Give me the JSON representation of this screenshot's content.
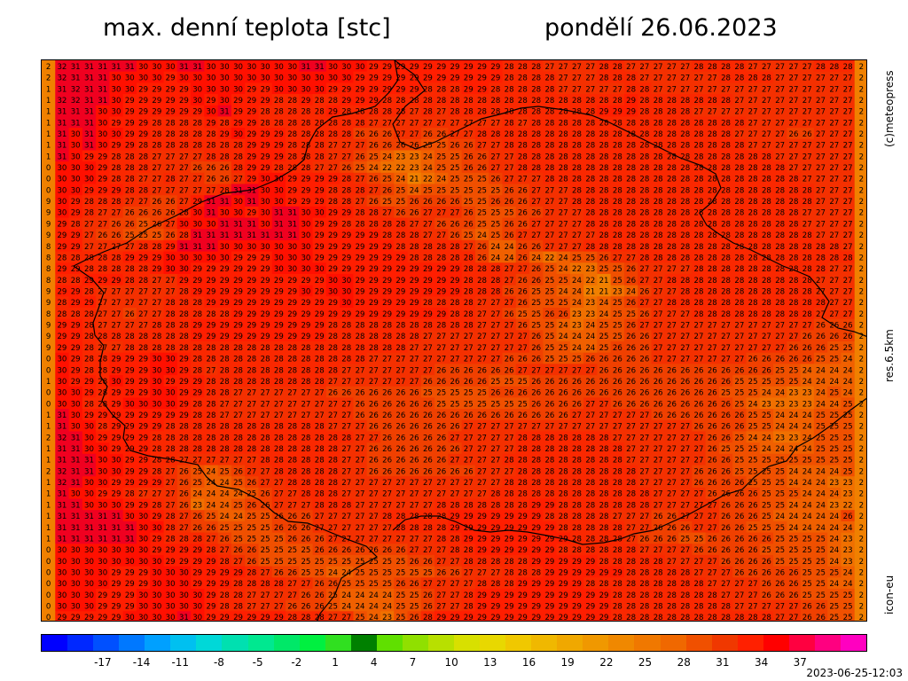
{
  "header": {
    "title": "max. denní teplota [stc]",
    "date": "pondělí 26.06.2023"
  },
  "side_labels": {
    "copyright": "(c)meteopress",
    "resolution": "res.6.5km",
    "model": "icon-eu"
  },
  "run_time": "2023-06-25-12:03",
  "legend": {
    "ticks": [
      "-17",
      "-14",
      "-11",
      "-8",
      "-5",
      "-2",
      "1",
      "4",
      "7",
      "10",
      "13",
      "16",
      "19",
      "22",
      "25",
      "28",
      "31",
      "34",
      "37"
    ],
    "colors": [
      "#0000ff",
      "#0028ff",
      "#0050ff",
      "#0078ff",
      "#00a0ff",
      "#00c0f0",
      "#00d8d8",
      "#00e0b0",
      "#00e890",
      "#00e868",
      "#00f040",
      "#30e020",
      "#008000",
      "#60e000",
      "#90e000",
      "#b8e000",
      "#d8e000",
      "#e8d800",
      "#f0c800",
      "#f0b800",
      "#f0a800",
      "#f09800",
      "#f08800",
      "#f07800",
      "#f06800",
      "#f05000",
      "#f03800",
      "#ff2000",
      "#ff0000",
      "#ff0040",
      "#ff0080",
      "#ff00c0"
    ]
  },
  "map": {
    "rows": [
      "2 32 31 31 31 31 31 30 30 30 31 31 30 30 30 30 30 30 30 31 31 30 30 30 29 29 29 29 29 29 29 29 29 29 28 28 28 27 27 27 27 28 28 27 27 27 27 27 28 28 28 28 27 27 27 27 27 28 28 28 2",
      "2 32 31 31 31 30 30 30 30 29 30 30 30 30 30 30 30 30 30 30 30 30 30 29 29 29 29 29 29 29 29 29 29 29 28 28 28 28 27 27 27 28 28 28 27 27 27 27 27 27 28 28 28 28 27 27 27 27 27 27 2",
      "1 31 32 31 31 30 30 29 29 29 29 30 30 30 30 29 29 30 30 30 30 29 29 29 29 29 29 29 28 28 28 29 29 28 28 28 28 28 27 27 27 27 27 28 28 27 27 27 27 27 27 27 27 27 27 27 27 27 27 27 2",
      "1 32 32 31 31 30 29 29 29 29 29 30 29 30 29 29 29 28 28 29 28 28 29 29 29 28 28 28 28 28 28 28 28 28 28 28 28 28 28 28 28 28 28 29 28 28 28 28 28 28 28 27 27 27 27 27 27 27 27 27 2",
      "1 31 31 31 30 30 29 29 29 29 29 29 30 31 29 29 28 28 28 28 28 29 28 28 28 28 28 27 28 27 28 28 28 28 28 28 28 28 28 28 28 29 29 29 28 28 28 28 27 27 27 27 27 27 27 27 27 27 27 27 2",
      "1 31 31 31 30 29 29 29 28 28 28 28 29 28 29 29 28 28 28 28 28 28 28 28 27 27 27 27 27 27 27 27 27 27 28 27 28 28 28 28 28 28 28 28 28 28 28 28 28 28 28 28 27 27 27 27 27 27 27 27 2",
      "1 31 30 31 30 30 29 29 28 28 28 28 28 29 30 29 29 29 28 28 28 28 28 26 26 26 27 27 26 26 27 27 28 28 28 28 28 28 28 28 28 28 28 28 28 28 28 28 28 28 28 27 27 27 27 26 26 27 27 27 2",
      "1 31 30 31 30 29 29 28 28 28 28 28 28 28 28 29 29 29 28 28 28 27 27 27 26 26 26 26 25 25 26 26 27 27 28 28 28 28 28 28 28 28 28 28 28 28 28 28 28 28 28 28 27 27 27 27 27 27 27 27 2",
      "1 31 30 29 29 28 28 28 27 27 27 27 28 28 28 29 29 29 28 28 28 27 27 26 25 24 23 23 24 25 25 26 26 27 27 28 28 28 28 28 28 28 28 28 28 28 28 28 28 28 28 28 28 28 27 27 27 27 27 27 2",
      "0 30 30 30 29 28 28 28 27 27 27 26 26 26 28 29 29 28 28 28 27 27 26 25 24 22 22 23 24 25 25 26 26 27 27 28 28 28 28 28 28 28 28 28 28 28 28 28 28 28 28 28 28 28 28 27 27 27 27 27 2",
      "0 30 30 30 29 28 28 27 27 28 27 27 26 26 27 29 30 30 29 29 29 29 28 27 26 25 24 21 22 24 25 25 25 26 27 27 27 28 28 28 28 28 28 28 28 28 28 28 28 28 28 28 28 28 28 28 27 27 27 27 2",
      "0 30 30 29 29 29 28 28 27 27 27 27 27 28 31 31 30 30 29 29 29 28 28 28 27 26 25 24 25 25 25 25 25 25 26 26 27 27 27 28 28 28 28 28 28 28 28 28 28 28 28 28 28 28 28 28 28 27 27 27 2",
      "9 30 29 28 28 28 27 27 26 26 27 29 31 31 30 31 30 30 29 29 29 28 28 27 26 25 25 26 26 26 26 25 25 26 26 26 27 27 27 28 28 28 28 28 28 28 28 28 28 28 28 28 28 28 28 28 28 27 27 27 2",
      "9 30 29 28 27 27 26 26 26 26 28 30 31 30 30 29 30 31 31 30 30 29 29 28 28 27 26 26 27 27 27 26 25 25 25 26 26 27 27 27 28 28 28 28 28 28 28 28 28 28 28 28 28 28 28 28 27 27 27 27 2",
      "9 29 28 27 27 26 26 25 26 27 30 30 30 31 31 31 30 31 31 30 29 29 28 28 28 28 28 27 27 26 26 26 25 25 26 26 27 27 27 27 28 28 28 28 28 28 28 28 28 28 28 28 28 28 28 28 27 27 27 27 2",
      "9 29 29 27 26 26 25 25 25 26 28 31 31 31 31 31 31 31 31 30 29 29 29 29 29 28 28 28 27 27 26 25 24 25 26 27 27 27 27 27 27 28 28 28 28 28 28 28 28 28 28 28 28 28 28 28 28 27 27 27 2",
      "8 29 29 27 27 27 27 28 28 29 31 31 31 30 30 30 30 30 30 30 29 29 29 29 29 29 28 28 28 28 28 27 26 24 24 26 26 27 27 27 28 28 28 28 28 28 28 28 28 28 28 28 28 28 28 28 28 28 28 27 2",
      "8 28 28 28 28 28 29 29 29 30 30 30 30 30 29 29 29 30 30 30 29 29 29 29 29 29 29 28 28 28 28 28 26 24 24 26 24 22 24 25 25 26 27 27 28 28 28 28 28 28 28 28 28 28 28 28 28 28 28 28 2",
      "8 29 29 28 28 28 28 28 29 30 30 29 29 29 29 29 29 30 30 30 30 29 29 29 29 29 29 29 29 29 29 28 28 28 27 27 26 25 24 22 23 25 25 26 27 27 27 27 28 28 28 28 28 28 28 28 28 28 27 27 2",
      "8 28 28 29 29 29 28 28 27 27 29 29 29 29 29 29 29 29 29 29 29 30 30 29 29 29 29 29 29 29 29 28 28 28 27 26 26 25 25 24 22 21 25 26 27 27 28 28 28 28 28 28 28 28 28 28 28 27 27 27 2",
      "9 29 29 28 27 27 27 27 27 27 28 29 29 29 29 29 29 29 29 30 29 30 30 29 29 29 29 29 29 29 29 28 28 28 26 26 25 25 24 24 21 21 23 24 26 27 27 28 28 28 28 28 28 28 28 28 28 27 27 27 2",
      "9 28 29 29 27 27 27 27 27 28 28 28 29 29 29 29 29 29 29 29 29 29 30 29 29 29 29 29 28 28 28 28 27 27 27 26 25 25 25 24 23 24 25 26 27 27 28 28 28 28 28 28 28 28 28 28 28 28 27 27 2",
      "8 28 28 28 27 27 26 27 27 28 28 28 28 28 29 29 29 29 29 29 29 29 29 29 29 29 29 29 29 29 28 28 27 27 26 25 25 26 26 23 23 24 25 25 26 27 27 27 28 28 28 28 28 28 28 28 28 27 27 27 2",
      "9 29 29 28 27 27 27 27 28 28 28 29 29 29 29 29 29 29 29 29 29 28 28 28 28 28 28 28 28 28 28 28 27 27 27 26 25 25 24 23 24 25 25 26 27 27 27 27 27 27 27 27 27 27 27 27 27 26 26 26 2",
      "9 29 29 28 28 28 28 28 28 28 28 29 29 29 29 29 29 29 29 29 29 28 28 28 28 28 28 28 27 27 27 27 27 27 27 27 26 25 24 24 24 25 25 26 26 27 27 27 27 27 27 27 27 27 27 27 26 26 26 26 2",
      "9 29 29 28 27 27 28 28 28 28 28 28 28 28 28 28 28 28 28 28 28 28 28 28 28 28 28 27 27 27 27 27 27 27 27 27 26 25 25 24 24 25 26 26 26 27 27 27 27 27 27 27 27 27 27 26 26 26 25 25 2",
      "0 30 29 28 28 29 29 29 30 30 29 28 28 28 28 28 28 28 28 28 28 28 28 28 27 27 27 27 27 27 27 27 27 27 26 26 26 25 25 25 26 26 26 26 26 27 27 27 27 27 27 27 26 26 26 26 26 25 25 24 2",
      "0 30 29 28 28 29 29 29 30 30 29 28 27 28 28 28 28 28 28 28 28 28 27 27 27 27 27 27 27 26 26 26 26 26 26 27 27 27 27 27 27 26 26 26 26 26 26 26 26 26 26 26 26 26 25 25 24 24 24 24 2",
      "1 30 29 29 28 30 29 29 30 29 29 29 28 28 28 28 28 28 28 28 28 27 27 27 27 27 27 27 26 26 26 26 26 25 25 25 26 26 26 26 26 26 26 26 26 26 26 26 26 26 26 25 25 25 25 25 24 24 24 24 2",
      "0 30 30 29 28 29 29 29 30 30 29 29 28 28 27 27 27 27 27 27 27 26 26 26 26 26 26 26 25 25 25 25 25 26 26 26 26 26 26 26 26 26 26 26 26 26 26 26 26 26 25 25 25 24 24 23 23 24 25 24 2",
      "0 30 30 28 28 29 30 30 30 30 29 28 28 27 27 27 27 27 27 27 27 27 27 26 26 26 26 26 26 25 25 25 25 25 25 25 26 26 26 26 27 27 26 26 26 26 26 26 26 26 26 25 24 23 23 23 23 24 24 25 2",
      "1 31 30 29 29 29 29 29 29 29 29 28 28 27 27 27 27 27 27 27 27 27 27 26 26 26 26 26 26 26 26 26 26 26 26 26 26 26 26 27 27 27 27 27 27 26 26 26 26 26 26 26 25 25 24 24 24 25 25 25 2",
      "1 31 30 30 28 29 29 29 29 28 28 28 28 28 28 28 28 28 28 28 28 27 27 27 26 26 26 26 26 26 26 27 27 27 27 27 27 27 27 27 27 27 27 27 27 27 27 27 26 26 26 26 25 25 24 24 24 25 25 25 2",
      "2 32 31 30 29 29 29 29 28 28 28 28 28 28 28 28 28 28 28 28 28 28 28 27 27 26 26 26 26 26 27 27 27 27 27 28 28 28 28 28 28 28 27 27 27 27 27 27 27 26 26 25 24 24 23 23 24 25 25 25 2",
      "1 31 31 30 30 29 29 29 28 28 28 28 28 28 28 28 28 28 28 28 28 28 27 27 26 26 26 26 26 26 26 27 27 27 27 28 28 28 28 28 28 28 28 27 27 27 27 27 27 26 25 25 25 24 24 24 24 25 25 25 2",
      "1 31 31 31 30 30 29 29 28 28 27 27 27 27 27 27 28 28 28 28 28 28 27 27 26 26 26 26 26 26 27 27 27 27 28 28 28 28 28 28 28 28 28 27 27 27 27 27 27 26 26 25 25 25 25 25 25 25 25 25 2",
      "2 32 31 31 30 30 29 29 28 27 26 25 24 25 26 27 27 28 28 28 28 28 27 27 26 26 26 26 26 26 26 26 27 27 27 28 28 28 28 28 28 28 28 28 27 27 27 27 26 26 26 25 25 25 25 24 24 24 24 25 2",
      "1 32 31 30 30 29 29 29 29 27 26 25 24 24 25 26 27 27 28 28 28 28 27 27 27 27 27 27 27 27 27 27 27 27 28 28 28 28 28 28 28 28 28 28 27 27 27 27 26 26 26 26 25 25 25 24 24 24 23 23 2",
      "1 31 30 30 29 29 28 27 27 27 26 24 24 24 24 25 26 27 27 28 28 28 27 27 27 27 27 27 27 27 27 27 27 28 28 28 28 28 28 28 28 28 28 28 28 27 27 27 27 26 26 26 26 25 25 25 24 24 24 23 2",
      "1 31 31 30 30 30 29 29 28 27 26 23 24 24 25 26 26 27 27 27 28 28 28 27 27 27 27 27 27 28 28 28 28 28 28 28 29 29 28 28 28 28 28 28 28 27 27 27 27 27 26 26 26 25 25 24 24 24 23 22 2",
      "1 31 31 31 31 31 30 30 29 28 27 26 25 24 24 25 25 26 26 26 27 27 27 27 27 28 28 28 28 28 29 29 29 29 29 29 29 28 28 28 28 28 27 27 27 26 26 27 27 27 26 26 26 25 24 24 24 24 24 26 2",
      "1 31 31 31 31 31 31 30 30 28 27 26 26 25 25 25 25 26 26 26 27 27 27 27 27 27 28 28 28 28 29 29 29 29 29 29 29 29 28 28 28 28 28 27 27 26 26 26 27 27 26 26 25 25 25 24 24 24 24 24 2",
      "1 31 31 31 31 31 31 30 29 28 28 28 27 26 25 25 25 25 26 26 26 27 27 27 27 27 27 27 27 28 28 29 29 29 29 29 29 29 29 28 28 28 28 27 26 26 26 25 25 26 26 26 26 26 25 25 25 25 24 23 2",
      "0 30 30 30 30 30 30 30 29 29 29 29 28 27 26 26 25 25 25 25 26 26 26 26 26 26 26 27 27 27 28 28 29 29 29 29 29 29 28 28 28 28 28 28 27 27 27 27 26 26 26 26 26 25 25 25 25 25 24 23 2",
      "0 30 30 30 30 30 30 30 30 29 29 29 29 28 27 26 25 25 25 25 25 25 25 25 25 25 25 26 26 27 27 28 28 28 28 28 29 29 29 29 29 28 28 28 28 28 27 27 27 27 26 26 26 26 25 25 25 25 24 23 2",
      "0 30 30 30 30 29 29 29 30 30 30 29 29 29 29 28 27 26 26 25 25 24 24 25 25 25 25 25 25 26 26 27 27 27 28 28 28 29 29 29 29 29 29 28 28 28 28 28 27 27 27 26 26 26 26 26 25 25 25 24 2",
      "0 30 30 30 30 29 29 29 30 30 30 29 29 29 28 28 28 28 27 27 26 26 25 25 25 25 26 26 27 27 27 27 28 28 28 29 29 29 29 29 28 28 28 28 28 28 28 28 28 27 27 27 27 26 26 26 25 25 24 24 2",
      "0 30 30 30 29 29 29 30 30 30 30 30 29 28 28 27 27 27 27 26 26 25 24 24 24 24 25 25 26 27 27 28 29 29 29 29 29 29 29 29 29 29 28 28 28 28 28 28 28 28 27 27 27 26 26 26 25 25 25 25 2",
      "0 30 30 30 29 29 29 30 30 30 30 30 29 28 28 27 27 27 26 26 26 25 24 24 24 24 25 25 26 27 27 28 29 29 29 29 29 29 29 29 29 29 28 28 28 28 28 28 28 28 28 27 27 27 27 27 26 26 25 25 2",
      "0 29 29 29 29 29 30 30 30 30 31 30 29 29 29 29 29 29 28 28 28 27 27 25 24 23 25 26 28 29 29 29 29 29 29 29 29 29 29 29 29 29 28 28 28 28 28 28 28 28 28 28 28 28 27 27 26 26 25 25 2"
    ]
  }
}
